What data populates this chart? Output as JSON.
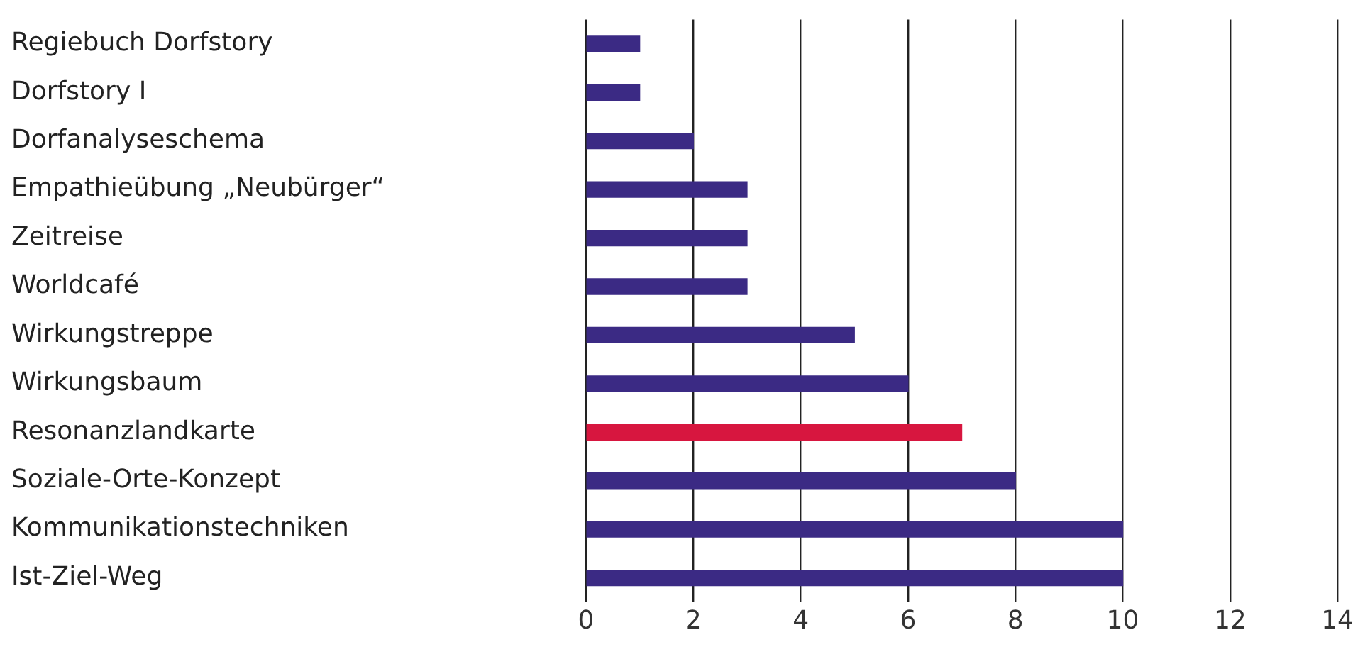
{
  "chart_data": {
    "type": "bar",
    "orientation": "horizontal",
    "categories": [
      "Regiebuch Dorfstory",
      "Dorfstory I",
      "Dorfanalyseschema",
      "Empathieübung „Neubürger“",
      "Zeitreise",
      "Worldcafé",
      "Wirkungstreppe",
      "Wirkungsbaum",
      "Resonanzlandkarte",
      "Soziale-Orte-Konzept",
      "Kommunikationstechniken",
      "Ist-Ziel-Weg"
    ],
    "values": [
      1,
      1,
      2,
      3,
      3,
      3,
      5,
      6,
      7,
      8,
      10,
      10
    ],
    "colors": [
      "#3b2a84",
      "#3b2a84",
      "#3b2a84",
      "#3b2a84",
      "#3b2a84",
      "#3b2a84",
      "#3b2a84",
      "#3b2a84",
      "#d7163f",
      "#3b2a84",
      "#3b2a84",
      "#3b2a84"
    ],
    "xlim": [
      0,
      14
    ],
    "xticks": [
      0,
      2,
      4,
      6,
      8,
      10,
      12,
      14
    ],
    "grid": "x",
    "legend": false
  }
}
